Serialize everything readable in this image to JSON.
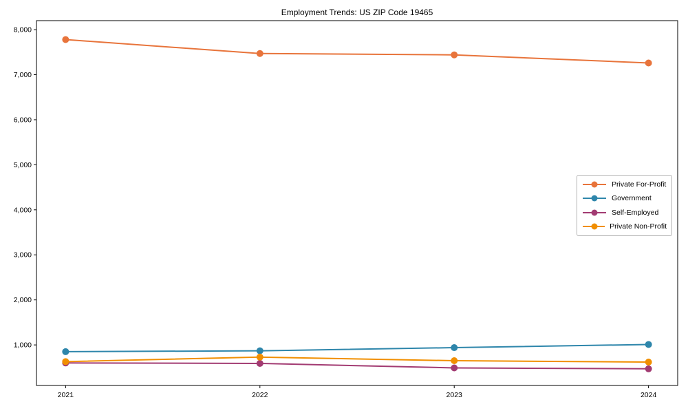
{
  "chart_data": {
    "type": "line",
    "title": "Employment Trends: US ZIP Code 19465",
    "xlabel": "",
    "ylabel": "",
    "x": [
      2021,
      2022,
      2023,
      2024
    ],
    "xticks": [
      "2021",
      "2022",
      "2023",
      "2024"
    ],
    "yticks": [
      1000,
      2000,
      3000,
      4000,
      5000,
      6000,
      7000,
      8000
    ],
    "xlim": [
      2020.85,
      2024.15
    ],
    "ylim": [
      100,
      8200
    ],
    "grid": false,
    "legend_position": "center right",
    "marker": "circle",
    "series": [
      {
        "name": "Private For-Profit",
        "color": "#E8743B",
        "values": [
          7780,
          7470,
          7440,
          7260
        ]
      },
      {
        "name": "Government",
        "color": "#2E86AB",
        "values": [
          850,
          870,
          940,
          1010
        ]
      },
      {
        "name": "Self-Employed",
        "color": "#A23B72",
        "values": [
          600,
          590,
          490,
          470
        ]
      },
      {
        "name": "Private Non-Profit",
        "color": "#F18F01",
        "values": [
          630,
          730,
          650,
          620
        ]
      }
    ]
  }
}
